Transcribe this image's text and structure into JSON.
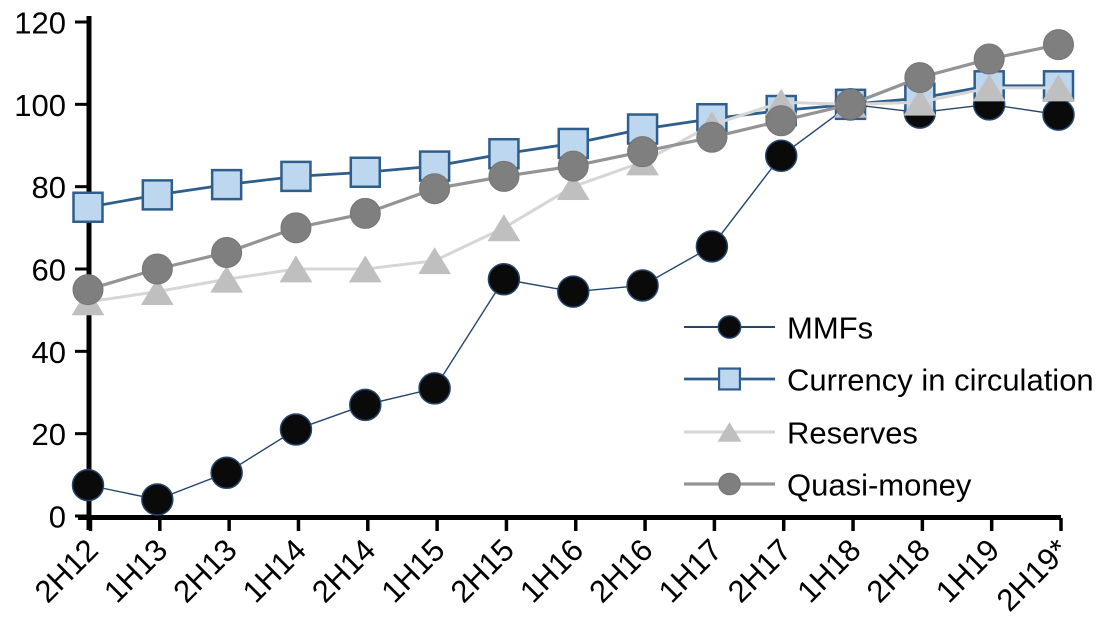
{
  "chart_data": {
    "type": "line",
    "title": "",
    "xlabel": "",
    "ylabel": "",
    "ylim": [
      0,
      120
    ],
    "yticks": [
      0,
      20,
      40,
      60,
      80,
      100,
      120
    ],
    "grid": false,
    "legend_position": "middle-right",
    "categories": [
      "2H12",
      "1H13",
      "2H13",
      "1H14",
      "2H14",
      "1H15",
      "2H15",
      "1H16",
      "2H16",
      "1H17",
      "2H17",
      "1H18",
      "2H18",
      "1H19",
      "2H19*"
    ],
    "series": [
      {
        "name": "MMFs",
        "values": [
          7.5,
          4,
          10.5,
          21,
          27,
          31,
          57.5,
          54.5,
          56,
          65.5,
          87.5,
          100,
          98,
          100,
          97.5
        ],
        "marker": "circle",
        "marker_fill": "#0a0a0a",
        "marker_stroke": "#24456e",
        "line_color": "#24456e",
        "line_width": 1.4,
        "marker_size": 31
      },
      {
        "name": "Currency in circulation",
        "values": [
          75,
          78,
          80.5,
          82.5,
          83.5,
          85,
          88,
          90.5,
          94,
          96.5,
          98.5,
          100,
          101.5,
          104.5,
          104.5
        ],
        "marker": "square",
        "marker_fill": "#bdd7ee",
        "marker_stroke": "#2f5d8c",
        "line_color": "#2f5d8c",
        "line_width": 2.8,
        "marker_size": 29
      },
      {
        "name": "Reserves",
        "values": [
          52,
          54.5,
          57.5,
          60,
          60,
          62,
          70,
          80,
          86,
          95,
          100.5,
          100,
          100.5,
          104,
          104
        ],
        "marker": "triangle",
        "marker_fill": "#bfbfbf",
        "marker_stroke": "#bfbfbf",
        "line_color": "#d6d6d6",
        "line_width": 3,
        "marker_size": 32
      },
      {
        "name": "Quasi-money",
        "values": [
          55,
          60,
          64,
          70,
          73.5,
          79.5,
          82.5,
          85,
          88.5,
          92,
          96,
          100,
          106.5,
          111,
          114.5
        ],
        "marker": "circle",
        "marker_fill": "#7f7f7f",
        "marker_stroke": "#757575",
        "line_color": "#949494",
        "line_width": 3.2,
        "marker_size": 30
      }
    ]
  }
}
